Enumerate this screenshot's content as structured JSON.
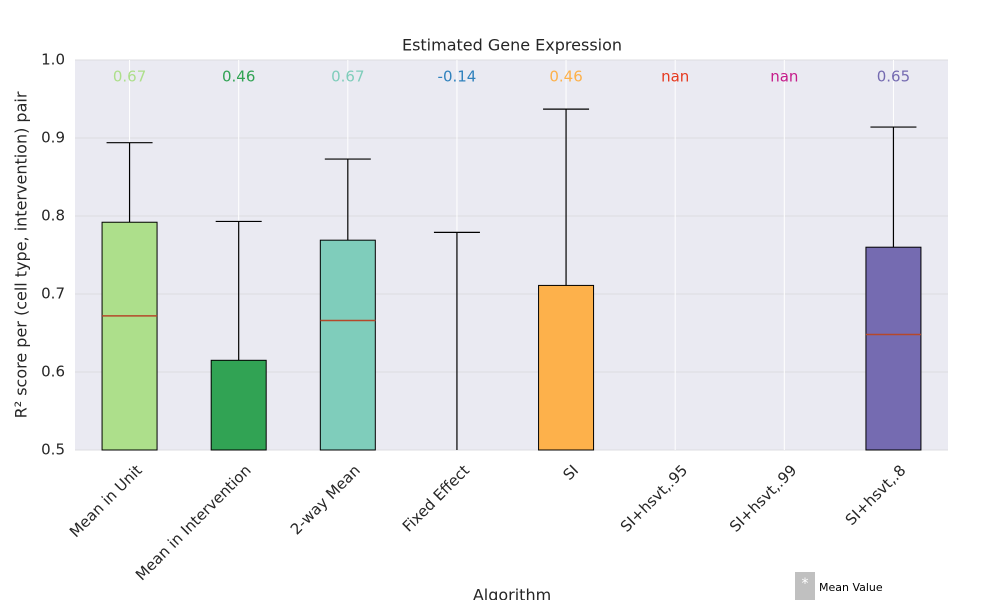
{
  "chart_data": {
    "type": "box",
    "title": "Estimated Gene Expression",
    "xlabel": "Algorithm",
    "ylabel": "R² score per (cell type, intervention) pair",
    "categories": [
      "Mean in Unit",
      "Mean in Intervention",
      "2-way Mean",
      "Fixed Effect",
      "SI",
      "SI+hsvt,.95",
      "SI+hsvt,.99",
      "SI+hsvt,.8"
    ],
    "colors": [
      "#addf8b",
      "#31a354",
      "#7fcdbb",
      "#3182bd",
      "#fdb14b",
      "#e6391f",
      "#c51b8a",
      "#756bb1"
    ],
    "q3": [
      0.792,
      0.615,
      0.769,
      null,
      0.711,
      null,
      null,
      0.76
    ],
    "median": [
      0.672,
      null,
      0.666,
      null,
      null,
      null,
      null,
      0.648
    ],
    "whisker_high": [
      0.894,
      0.793,
      0.873,
      0.779,
      0.937,
      null,
      null,
      0.914
    ],
    "mean_labels": [
      "0.67",
      "0.46",
      "0.67",
      "-0.14",
      "0.46",
      "nan",
      "nan",
      "0.65"
    ],
    "ylim": [
      0.5,
      1.0
    ],
    "yticks": [
      0.5,
      0.6,
      0.7,
      0.8,
      0.9,
      {
        "value": 1.0,
        "label": "1.0"
      }
    ],
    "grid": true,
    "legend": {
      "symbol": "*",
      "label": "Mean Value"
    }
  }
}
